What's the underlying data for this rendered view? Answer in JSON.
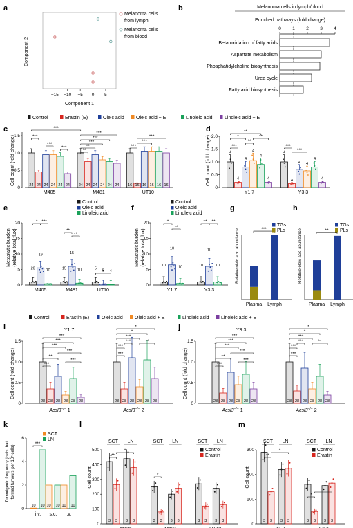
{
  "colors": {
    "control": "#1a1a1a",
    "erastin": "#d7261e",
    "oleic": "#1f3f99",
    "oleic_e": "#f08a24",
    "linoleic": "#1aa15a",
    "linoleic_e": "#7b3fa0",
    "tg": "#1f3f99",
    "pl": "#9a8a10",
    "lymph_pt": "#cc6666",
    "blood_pt": "#6aa5a0"
  },
  "legend_main": [
    "Control",
    "Erastin (E)",
    "Oleic acid",
    "Oleic acid + E",
    "Linoleic acid",
    "Linoleic acid + E"
  ],
  "panels": {
    "a": {
      "label": "a",
      "xlabel": "Component 1",
      "ylabel": "Component 2",
      "xticks": [
        "−15",
        "−10",
        "−5",
        "0",
        "5"
      ],
      "legend": [
        "Melanoma cells",
        "from lymph",
        "Melanoma cells",
        "from blood"
      ]
    },
    "b": {
      "label": "b",
      "title": "Melanoma cells in lymph/blood",
      "subtitle": "Enriched pathways (fold change)",
      "xticks": [
        "0",
        "1",
        "2",
        "3",
        "4"
      ]
    },
    "c": {
      "label": "c",
      "ylabel": "Cell count (fold change)",
      "groups": [
        "M405",
        "M481",
        "UT10"
      ],
      "yticks": [
        "0",
        "0.5",
        "1.0",
        "1.5"
      ]
    },
    "d": {
      "label": "d",
      "ylabel": "Cell count (fold change)",
      "groups": [
        "Y1.7",
        "Y3.3"
      ],
      "yticks": [
        "0",
        "0.5",
        "1.0",
        "1.5",
        "2.0"
      ]
    },
    "e": {
      "label": "e",
      "ylabel": "Metastatic burden",
      "ylabel2": "(relative total flux)",
      "groups": [
        "M405",
        "M481",
        "UT10"
      ],
      "yticks": [
        "0",
        "5",
        "10",
        "15",
        "20"
      ],
      "legend": [
        "Control",
        "Oleic acid",
        "Linoleic acid"
      ]
    },
    "f": {
      "label": "f",
      "ylabel": "Metastatic burden",
      "ylabel2": "(relative total flux)",
      "groups": [
        "Y1.7",
        "Y3.3"
      ],
      "legend": [
        "Control",
        "Oleic acid",
        "Linoleic acid"
      ]
    },
    "g": {
      "label": "g",
      "ylabel": "Relative oleic acid abundance",
      "cats": [
        "Plasma",
        "Lymph"
      ],
      "legend": [
        "TGs",
        "PLs"
      ],
      "sig": "***"
    },
    "h": {
      "label": "h",
      "ylabel": "Relative oleic acid abundance",
      "cats": [
        "Plasma",
        "Lymph"
      ],
      "legend": [
        "TGs",
        "PLs"
      ],
      "sig": "**"
    },
    "i": {
      "label": "i",
      "title": "Y1.7",
      "ylabel": "Cell count (fold change)",
      "yticks": [
        "0",
        "0.5",
        "1.0",
        "1.5"
      ],
      "g1": "1",
      "g2": "2",
      "gene": "Acsl3"
    },
    "j": {
      "label": "j",
      "title": "Y3.3",
      "ylabel": "Cell count (fold change)",
      "yticks": [
        "0",
        "0.5",
        "1.0",
        "1.5"
      ],
      "g1": "1",
      "g2": "2",
      "gene": "Acsl3"
    },
    "k": {
      "label": "k",
      "ylabel": "Tumorigenic frequency (cells that",
      "ylabel2": "formed tumours per 10⁴ cells)",
      "legend": [
        "SCT",
        "LN"
      ],
      "cats": [
        "i.v.",
        "s.c.",
        "i.v."
      ],
      "yticks": [
        "0",
        "2",
        "4",
        "6"
      ]
    },
    "l": {
      "label": "l",
      "ylabel": "Cell count",
      "groups": [
        "M405",
        "M481",
        "UT10"
      ],
      "head": [
        "SCT",
        "LN",
        "SCT",
        "LN",
        "SCT",
        "LN"
      ],
      "legend": [
        "Control",
        "Erastin"
      ],
      "yticks": [
        "0",
        "100",
        "200",
        "300",
        "400",
        "500"
      ]
    },
    "m": {
      "label": "m",
      "ylabel": "Cell count",
      "groups": [
        "Y1.7",
        "Y3.3"
      ],
      "head": [
        "SCT",
        "LN",
        "SCT",
        "LN"
      ],
      "legend": [
        "Control",
        "Erastin"
      ],
      "yticks": [
        "0",
        "100",
        "200",
        "300"
      ]
    }
  },
  "chart_data": [
    {
      "panel": "a",
      "type": "scatter",
      "xlabel": "Component 1",
      "ylabel": "Component 2",
      "series": [
        {
          "name": "Melanoma cells from lymph",
          "points": [
            [
              -15,
              3
            ],
            [
              0,
              -5
            ],
            [
              0,
              -7
            ]
          ]
        },
        {
          "name": "Melanoma cells from blood",
          "points": [
            [
              2,
              7
            ],
            [
              7,
              2
            ]
          ]
        }
      ]
    },
    {
      "panel": "b",
      "type": "bar",
      "orientation": "horizontal",
      "categories": [
        "Beta oxidation of fatty acids",
        "Aspartate metabolism",
        "Phosphatidylcholine biosynthesis",
        "Urea cycle",
        "Fatty acid biosynthesis"
      ],
      "values": [
        3.6,
        3.0,
        2.9,
        2.3,
        1.7
      ],
      "xlim": [
        0,
        4
      ],
      "reference_line": 1
    },
    {
      "panel": "c",
      "type": "bar",
      "groups": [
        "M405",
        "M481",
        "UT10"
      ],
      "series_names": [
        "Control",
        "Erastin (E)",
        "Oleic acid",
        "Oleic acid + E",
        "Linoleic acid",
        "Linoleic acid + E"
      ],
      "values": [
        [
          1.0,
          0.45,
          0.95,
          0.95,
          0.9,
          0.4
        ],
        [
          1.0,
          0.75,
          0.95,
          0.8,
          0.75,
          0.7
        ],
        [
          1.0,
          0.12,
          1.05,
          1.05,
          1.05,
          1.0
        ]
      ],
      "n": [
        [
          24,
          24,
          24,
          24,
          24,
          24
        ],
        [
          24,
          24,
          24,
          24,
          24,
          24
        ],
        [
          16,
          16,
          16,
          16,
          16,
          16
        ]
      ],
      "ylim": [
        0,
        1.6
      ],
      "significance": [
        "***",
        "***",
        "***",
        "***",
        "***",
        "***",
        "***",
        "**",
        "**",
        "***",
        "***",
        "***"
      ]
    },
    {
      "panel": "d",
      "type": "bar",
      "groups": [
        "Y1.7",
        "Y3.3"
      ],
      "series_names": [
        "Control",
        "Erastin (E)",
        "Oleic acid",
        "Oleic acid + E",
        "Linoleic acid",
        "Linoleic acid + E"
      ],
      "values": [
        [
          1.0,
          0.2,
          0.8,
          1.05,
          0.9,
          0.2
        ],
        [
          1.0,
          0.15,
          0.7,
          0.65,
          0.8,
          0.2
        ]
      ],
      "n": [
        [
          4,
          4,
          4,
          4,
          4,
          4
        ],
        [
          4,
          4,
          4,
          4,
          4,
          4
        ]
      ],
      "ylim": [
        0,
        2.0
      ],
      "significance": [
        "**",
        "*",
        "**",
        "**",
        "***",
        "***",
        "***"
      ]
    },
    {
      "panel": "e",
      "type": "bar",
      "groups": [
        "M405",
        "M481",
        "UT10"
      ],
      "series_names": [
        "Control",
        "Oleic acid",
        "Linoleic acid"
      ],
      "values": [
        [
          1.0,
          5.5,
          0.4
        ],
        [
          1.0,
          6.0,
          0.6
        ],
        [
          1.0,
          0.3,
          0.2
        ]
      ],
      "n": [
        [
          20,
          19,
          10
        ],
        [
          15,
          15,
          10
        ],
        [
          5,
          5,
          4
        ]
      ],
      "ylim": [
        0,
        20
      ],
      "significance": [
        "*",
        "***",
        "**",
        "**",
        "*"
      ]
    },
    {
      "panel": "f",
      "type": "bar",
      "groups": [
        "Y1.7",
        "Y3.3"
      ],
      "series_names": [
        "Control",
        "Oleic acid",
        "Linoleic acid"
      ],
      "values": [
        [
          1.0,
          6.5,
          0.5
        ],
        [
          1.0,
          6.0,
          1.0
        ]
      ],
      "n": [
        [
          10,
          10,
          10
        ],
        [
          10,
          10,
          10
        ]
      ],
      "ylim": [
        0,
        20
      ],
      "significance": [
        "*",
        "**",
        "**",
        "**"
      ]
    },
    {
      "panel": "g",
      "type": "bar",
      "stacked": true,
      "categories": [
        "Plasma",
        "Lymph"
      ],
      "series": [
        {
          "name": "PLs",
          "values": [
            6,
            0
          ]
        },
        {
          "name": "TGs",
          "values": [
            10,
            31
          ]
        }
      ],
      "significance": "***"
    },
    {
      "panel": "h",
      "type": "bar",
      "stacked": true,
      "categories": [
        "Plasma",
        "Lymph"
      ],
      "series": [
        {
          "name": "PLs",
          "values": [
            5,
            0
          ]
        },
        {
          "name": "TGs",
          "values": [
            16,
            34
          ]
        }
      ],
      "significance": "**"
    },
    {
      "panel": "i",
      "type": "bar",
      "title": "Y1.7",
      "groups": [
        "Acsl3−/− 1",
        "Acsl3−/− 2"
      ],
      "series_names": [
        "Control",
        "Erastin (E)",
        "Oleic acid",
        "Oleic acid + E",
        "Linoleic acid",
        "Linoleic acid + E"
      ],
      "values": [
        [
          1.0,
          0.35,
          0.65,
          0.2,
          0.6,
          0.15
        ],
        [
          1.0,
          0.35,
          1.1,
          0.4,
          1.05,
          0.6
        ]
      ],
      "n": [
        [
          28,
          28,
          28,
          28,
          28,
          28
        ],
        [
          28,
          28,
          28,
          28,
          28,
          28
        ]
      ],
      "ylim": [
        0,
        1.5
      ]
    },
    {
      "panel": "j",
      "type": "bar",
      "title": "Y3.3",
      "groups": [
        "Acsl3−/− 1",
        "Acsl3−/− 2"
      ],
      "series_names": [
        "Control",
        "Erastin (E)",
        "Oleic acid",
        "Oleic acid + E",
        "Linoleic acid",
        "Linoleic acid + E"
      ],
      "values": [
        [
          1.0,
          0.25,
          0.75,
          0.45,
          0.7,
          0.35
        ],
        [
          1.0,
          0.3,
          0.85,
          0.35,
          0.65,
          0.2
        ]
      ],
      "n": [
        [
          28,
          28,
          28,
          28,
          28,
          28
        ],
        [
          28,
          28,
          28,
          28,
          28,
          28
        ]
      ],
      "ylim": [
        0,
        1.5
      ]
    },
    {
      "panel": "k",
      "type": "bar",
      "categories": [
        "i.v.",
        "s.c.",
        "i.v."
      ],
      "series": [
        {
          "name": "SCT",
          "values": [
            0.05,
            2.0,
            2.0
          ]
        },
        {
          "name": "LN",
          "values": [
            5.0,
            2.0,
            2.8
          ]
        }
      ],
      "n": [
        [
          10,
          10
        ],
        [
          10,
          10
        ],
        [
          10,
          10
        ]
      ],
      "ylim": [
        0,
        6
      ],
      "significance": "***"
    },
    {
      "panel": "l",
      "type": "bar",
      "groups": [
        "M405",
        "M481",
        "UT10"
      ],
      "series_names": [
        "Control",
        "Erastin"
      ],
      "values": [
        [
          420,
          265,
          440,
          380
        ],
        [
          250,
          80,
          200,
          240
        ],
        [
          270,
          120,
          240,
          130
        ]
      ],
      "n": 3,
      "ylim": [
        0,
        500
      ],
      "significance": [
        "**",
        "*",
        "*"
      ]
    },
    {
      "panel": "m",
      "type": "bar",
      "groups": [
        "Y1.7",
        "Y3.3"
      ],
      "series_names": [
        "Control",
        "Erastin"
      ],
      "values": [
        [
          290,
          130,
          220,
          225
        ],
        [
          160,
          50,
          155,
          165
        ]
      ],
      "n": 3,
      "ylim": [
        0,
        300
      ],
      "significance": [
        "**",
        "*",
        "*",
        "*"
      ]
    }
  ]
}
